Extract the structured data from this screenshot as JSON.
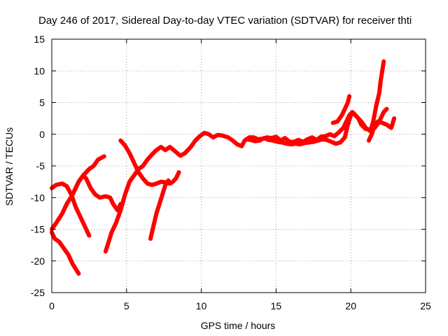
{
  "chart_data": {
    "type": "line",
    "title": "Day 246 of 2017, Sidereal Day-to-day VTEC variation (SDTVAR) for receiver thti",
    "xlabel": "GPS time / hours",
    "ylabel": "SDTVAR / TECUs",
    "xlim": [
      0,
      25
    ],
    "ylim": [
      -25,
      15
    ],
    "xticks": [
      "0",
      "5",
      "10",
      "15",
      "20",
      "25"
    ],
    "yticks": [
      "15",
      "10",
      "5",
      "0",
      "-5",
      "-10",
      "-15",
      "-20",
      "-25"
    ],
    "grid": true,
    "line_color": "#ff0000",
    "series": [
      {
        "values": [
          [
            0.0,
            -8.5
          ],
          [
            0.3,
            -8.0
          ],
          [
            0.7,
            -7.8
          ],
          [
            1.0,
            -8.2
          ],
          [
            1.3,
            -9.5
          ],
          [
            1.6,
            -11.5
          ],
          [
            2.0,
            -13.5
          ],
          [
            2.3,
            -15.0
          ],
          [
            2.5,
            -16.0
          ]
        ]
      },
      {
        "values": [
          [
            0.0,
            -15.5
          ],
          [
            0.2,
            -16.5
          ],
          [
            0.5,
            -17.0
          ],
          [
            0.8,
            -18.0
          ],
          [
            1.1,
            -19.0
          ],
          [
            1.4,
            -20.5
          ],
          [
            1.8,
            -22.0
          ]
        ]
      },
      {
        "values": [
          [
            0.0,
            -15.0
          ],
          [
            0.3,
            -14.0
          ],
          [
            0.7,
            -12.5
          ],
          [
            1.0,
            -11.0
          ],
          [
            1.4,
            -9.5
          ],
          [
            1.8,
            -7.5
          ],
          [
            2.1,
            -6.5
          ],
          [
            2.5,
            -5.5
          ],
          [
            2.8,
            -5.0
          ],
          [
            3.1,
            -4.0
          ],
          [
            3.5,
            -3.5
          ]
        ]
      },
      {
        "values": [
          [
            1.5,
            -9.0
          ],
          [
            1.8,
            -7.5
          ],
          [
            2.1,
            -6.5
          ],
          [
            2.3,
            -7.0
          ],
          [
            2.6,
            -8.5
          ],
          [
            2.9,
            -9.5
          ],
          [
            3.2,
            -10.0
          ],
          [
            3.6,
            -9.8
          ],
          [
            3.9,
            -10.0
          ],
          [
            4.1,
            -11.0
          ],
          [
            4.4,
            -12.0
          ],
          [
            4.6,
            -11.0
          ]
        ]
      },
      {
        "values": [
          [
            3.6,
            -18.5
          ],
          [
            3.8,
            -17.0
          ],
          [
            4.0,
            -15.5
          ],
          [
            4.3,
            -14.0
          ],
          [
            4.6,
            -12.0
          ],
          [
            4.9,
            -9.5
          ],
          [
            5.2,
            -7.5
          ],
          [
            5.5,
            -6.5
          ],
          [
            5.8,
            -5.5
          ],
          [
            6.1,
            -5.0
          ],
          [
            6.4,
            -4.0
          ],
          [
            6.7,
            -3.2
          ],
          [
            7.0,
            -2.5
          ],
          [
            7.3,
            -2.0
          ],
          [
            7.6,
            -2.5
          ],
          [
            7.9,
            -2.0
          ],
          [
            8.2,
            -2.6
          ],
          [
            8.6,
            -3.4
          ],
          [
            8.9,
            -3.0
          ],
          [
            9.3,
            -2.0
          ],
          [
            9.6,
            -1.0
          ],
          [
            9.9,
            -0.3
          ],
          [
            10.2,
            0.2
          ],
          [
            10.5,
            0.0
          ],
          [
            10.8,
            -0.5
          ],
          [
            11.1,
            -0.1
          ],
          [
            11.4,
            -0.2
          ],
          [
            11.8,
            -0.5
          ],
          [
            12.1,
            -1.0
          ],
          [
            12.4,
            -1.6
          ],
          [
            12.7,
            -1.9
          ],
          [
            12.9,
            -1.0
          ],
          [
            13.2,
            -0.5
          ],
          [
            13.5,
            -0.5
          ],
          [
            13.8,
            -0.8
          ],
          [
            14.1,
            -0.7
          ],
          [
            14.4,
            -0.5
          ],
          [
            14.7,
            -0.6
          ],
          [
            15.0,
            -0.4
          ],
          [
            15.3,
            -1.0
          ],
          [
            15.6,
            -0.6
          ],
          [
            15.9,
            -1.2
          ],
          [
            16.2,
            -1.2
          ],
          [
            16.5,
            -0.9
          ],
          [
            16.8,
            -1.2
          ],
          [
            17.1,
            -0.8
          ],
          [
            17.4,
            -0.5
          ],
          [
            17.7,
            -0.9
          ],
          [
            18.0,
            -0.4
          ],
          [
            18.3,
            -0.3
          ],
          [
            18.6,
            0.0
          ],
          [
            18.9,
            -0.3
          ],
          [
            19.2,
            0.3
          ],
          [
            19.5,
            1.0
          ],
          [
            19.7,
            2.0
          ],
          [
            19.9,
            3.0
          ],
          [
            20.1,
            3.5
          ],
          [
            20.3,
            3.0
          ],
          [
            20.5,
            2.5
          ],
          [
            20.7,
            1.5
          ],
          [
            21.0,
            0.8
          ]
        ]
      },
      {
        "values": [
          [
            4.6,
            -1.0
          ],
          [
            4.9,
            -1.8
          ],
          [
            5.2,
            -3.0
          ],
          [
            5.5,
            -4.5
          ],
          [
            5.8,
            -6.0
          ],
          [
            6.1,
            -7.0
          ],
          [
            6.4,
            -7.8
          ],
          [
            6.7,
            -8.0
          ],
          [
            7.0,
            -7.8
          ],
          [
            7.3,
            -7.5
          ],
          [
            7.6,
            -7.6
          ],
          [
            7.9,
            -7.8
          ],
          [
            8.1,
            -7.5
          ],
          [
            8.3,
            -7.0
          ],
          [
            8.5,
            -6.0
          ]
        ]
      },
      {
        "values": [
          [
            6.6,
            -16.5
          ],
          [
            6.8,
            -14.5
          ],
          [
            7.0,
            -12.5
          ],
          [
            7.2,
            -11.0
          ],
          [
            7.4,
            -9.5
          ],
          [
            7.6,
            -8.0
          ],
          [
            7.8,
            -7.3
          ]
        ]
      },
      {
        "values": [
          [
            13.0,
            -0.8
          ],
          [
            13.3,
            -0.9
          ],
          [
            13.6,
            -1.1
          ],
          [
            13.9,
            -1.0
          ],
          [
            14.2,
            -0.6
          ],
          [
            14.5,
            -0.9
          ],
          [
            14.8,
            -1.0
          ],
          [
            15.1,
            -1.2
          ],
          [
            15.4,
            -1.3
          ],
          [
            15.7,
            -1.5
          ],
          [
            16.0,
            -1.6
          ],
          [
            16.3,
            -1.5
          ],
          [
            16.6,
            -1.6
          ],
          [
            16.9,
            -1.4
          ],
          [
            17.2,
            -1.3
          ],
          [
            17.5,
            -1.2
          ],
          [
            17.8,
            -1.0
          ],
          [
            18.1,
            -0.8
          ],
          [
            18.4,
            -0.9
          ],
          [
            18.7,
            -1.2
          ],
          [
            19.0,
            -1.5
          ],
          [
            19.3,
            -1.3
          ],
          [
            19.6,
            -0.5
          ],
          [
            19.8,
            1.5
          ],
          [
            20.0,
            3.0
          ],
          [
            20.2,
            3.3
          ],
          [
            20.5,
            2.5
          ],
          [
            20.7,
            2.0
          ],
          [
            21.0,
            1.0
          ],
          [
            21.3,
            0.5
          ],
          [
            21.6,
            1.0
          ],
          [
            21.9,
            2.0
          ],
          [
            22.2,
            3.5
          ],
          [
            22.4,
            4.0
          ]
        ]
      },
      {
        "values": [
          [
            18.8,
            1.8
          ],
          [
            19.1,
            2.0
          ],
          [
            19.4,
            3.0
          ],
          [
            19.6,
            4.0
          ],
          [
            19.8,
            5.0
          ],
          [
            19.9,
            6.0
          ]
        ]
      },
      {
        "values": [
          [
            21.3,
            0.5
          ],
          [
            21.5,
            2.0
          ],
          [
            21.7,
            4.5
          ],
          [
            21.9,
            6.5
          ],
          [
            22.0,
            8.5
          ],
          [
            22.1,
            10.0
          ],
          [
            22.2,
            11.5
          ]
        ]
      },
      {
        "values": [
          [
            21.2,
            -1.0
          ],
          [
            21.4,
            0.0
          ],
          [
            21.6,
            1.5
          ],
          [
            21.8,
            2.0
          ],
          [
            22.1,
            1.8
          ],
          [
            22.4,
            1.5
          ],
          [
            22.7,
            1.0
          ],
          [
            22.9,
            2.5
          ]
        ]
      }
    ]
  }
}
